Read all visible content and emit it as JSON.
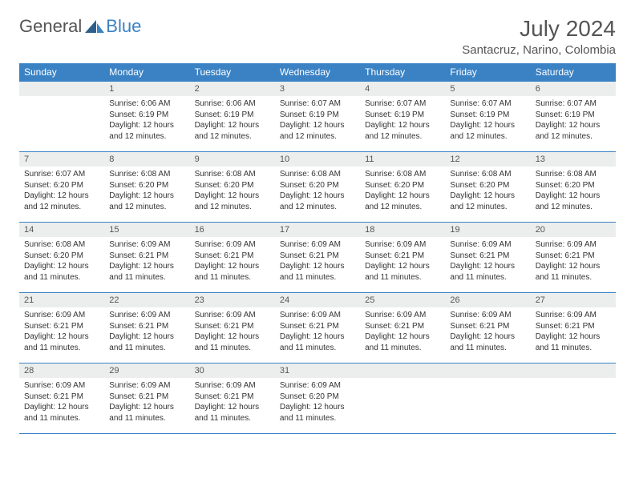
{
  "brand": {
    "part1": "General",
    "part2": "Blue"
  },
  "title": "July 2024",
  "location": "Santacruz, Narino, Colombia",
  "colors": {
    "header_bg": "#3b82c4",
    "header_text": "#ffffff",
    "daynum_bg": "#eceeee",
    "border": "#3b82c4",
    "text": "#333333",
    "brand_gray": "#555555",
    "brand_blue": "#3b82c4",
    "page_bg": "#ffffff"
  },
  "typography": {
    "title_fontsize": 28,
    "location_fontsize": 15,
    "weekday_fontsize": 12,
    "daynum_fontsize": 11,
    "body_fontsize": 10
  },
  "weekdays": [
    "Sunday",
    "Monday",
    "Tuesday",
    "Wednesday",
    "Thursday",
    "Friday",
    "Saturday"
  ],
  "weeks": [
    [
      null,
      {
        "n": "1",
        "sr": "Sunrise: 6:06 AM",
        "ss": "Sunset: 6:19 PM",
        "d1": "Daylight: 12 hours",
        "d2": "and 12 minutes."
      },
      {
        "n": "2",
        "sr": "Sunrise: 6:06 AM",
        "ss": "Sunset: 6:19 PM",
        "d1": "Daylight: 12 hours",
        "d2": "and 12 minutes."
      },
      {
        "n": "3",
        "sr": "Sunrise: 6:07 AM",
        "ss": "Sunset: 6:19 PM",
        "d1": "Daylight: 12 hours",
        "d2": "and 12 minutes."
      },
      {
        "n": "4",
        "sr": "Sunrise: 6:07 AM",
        "ss": "Sunset: 6:19 PM",
        "d1": "Daylight: 12 hours",
        "d2": "and 12 minutes."
      },
      {
        "n": "5",
        "sr": "Sunrise: 6:07 AM",
        "ss": "Sunset: 6:19 PM",
        "d1": "Daylight: 12 hours",
        "d2": "and 12 minutes."
      },
      {
        "n": "6",
        "sr": "Sunrise: 6:07 AM",
        "ss": "Sunset: 6:19 PM",
        "d1": "Daylight: 12 hours",
        "d2": "and 12 minutes."
      }
    ],
    [
      {
        "n": "7",
        "sr": "Sunrise: 6:07 AM",
        "ss": "Sunset: 6:20 PM",
        "d1": "Daylight: 12 hours",
        "d2": "and 12 minutes."
      },
      {
        "n": "8",
        "sr": "Sunrise: 6:08 AM",
        "ss": "Sunset: 6:20 PM",
        "d1": "Daylight: 12 hours",
        "d2": "and 12 minutes."
      },
      {
        "n": "9",
        "sr": "Sunrise: 6:08 AM",
        "ss": "Sunset: 6:20 PM",
        "d1": "Daylight: 12 hours",
        "d2": "and 12 minutes."
      },
      {
        "n": "10",
        "sr": "Sunrise: 6:08 AM",
        "ss": "Sunset: 6:20 PM",
        "d1": "Daylight: 12 hours",
        "d2": "and 12 minutes."
      },
      {
        "n": "11",
        "sr": "Sunrise: 6:08 AM",
        "ss": "Sunset: 6:20 PM",
        "d1": "Daylight: 12 hours",
        "d2": "and 12 minutes."
      },
      {
        "n": "12",
        "sr": "Sunrise: 6:08 AM",
        "ss": "Sunset: 6:20 PM",
        "d1": "Daylight: 12 hours",
        "d2": "and 12 minutes."
      },
      {
        "n": "13",
        "sr": "Sunrise: 6:08 AM",
        "ss": "Sunset: 6:20 PM",
        "d1": "Daylight: 12 hours",
        "d2": "and 12 minutes."
      }
    ],
    [
      {
        "n": "14",
        "sr": "Sunrise: 6:08 AM",
        "ss": "Sunset: 6:20 PM",
        "d1": "Daylight: 12 hours",
        "d2": "and 11 minutes."
      },
      {
        "n": "15",
        "sr": "Sunrise: 6:09 AM",
        "ss": "Sunset: 6:21 PM",
        "d1": "Daylight: 12 hours",
        "d2": "and 11 minutes."
      },
      {
        "n": "16",
        "sr": "Sunrise: 6:09 AM",
        "ss": "Sunset: 6:21 PM",
        "d1": "Daylight: 12 hours",
        "d2": "and 11 minutes."
      },
      {
        "n": "17",
        "sr": "Sunrise: 6:09 AM",
        "ss": "Sunset: 6:21 PM",
        "d1": "Daylight: 12 hours",
        "d2": "and 11 minutes."
      },
      {
        "n": "18",
        "sr": "Sunrise: 6:09 AM",
        "ss": "Sunset: 6:21 PM",
        "d1": "Daylight: 12 hours",
        "d2": "and 11 minutes."
      },
      {
        "n": "19",
        "sr": "Sunrise: 6:09 AM",
        "ss": "Sunset: 6:21 PM",
        "d1": "Daylight: 12 hours",
        "d2": "and 11 minutes."
      },
      {
        "n": "20",
        "sr": "Sunrise: 6:09 AM",
        "ss": "Sunset: 6:21 PM",
        "d1": "Daylight: 12 hours",
        "d2": "and 11 minutes."
      }
    ],
    [
      {
        "n": "21",
        "sr": "Sunrise: 6:09 AM",
        "ss": "Sunset: 6:21 PM",
        "d1": "Daylight: 12 hours",
        "d2": "and 11 minutes."
      },
      {
        "n": "22",
        "sr": "Sunrise: 6:09 AM",
        "ss": "Sunset: 6:21 PM",
        "d1": "Daylight: 12 hours",
        "d2": "and 11 minutes."
      },
      {
        "n": "23",
        "sr": "Sunrise: 6:09 AM",
        "ss": "Sunset: 6:21 PM",
        "d1": "Daylight: 12 hours",
        "d2": "and 11 minutes."
      },
      {
        "n": "24",
        "sr": "Sunrise: 6:09 AM",
        "ss": "Sunset: 6:21 PM",
        "d1": "Daylight: 12 hours",
        "d2": "and 11 minutes."
      },
      {
        "n": "25",
        "sr": "Sunrise: 6:09 AM",
        "ss": "Sunset: 6:21 PM",
        "d1": "Daylight: 12 hours",
        "d2": "and 11 minutes."
      },
      {
        "n": "26",
        "sr": "Sunrise: 6:09 AM",
        "ss": "Sunset: 6:21 PM",
        "d1": "Daylight: 12 hours",
        "d2": "and 11 minutes."
      },
      {
        "n": "27",
        "sr": "Sunrise: 6:09 AM",
        "ss": "Sunset: 6:21 PM",
        "d1": "Daylight: 12 hours",
        "d2": "and 11 minutes."
      }
    ],
    [
      {
        "n": "28",
        "sr": "Sunrise: 6:09 AM",
        "ss": "Sunset: 6:21 PM",
        "d1": "Daylight: 12 hours",
        "d2": "and 11 minutes."
      },
      {
        "n": "29",
        "sr": "Sunrise: 6:09 AM",
        "ss": "Sunset: 6:21 PM",
        "d1": "Daylight: 12 hours",
        "d2": "and 11 minutes."
      },
      {
        "n": "30",
        "sr": "Sunrise: 6:09 AM",
        "ss": "Sunset: 6:21 PM",
        "d1": "Daylight: 12 hours",
        "d2": "and 11 minutes."
      },
      {
        "n": "31",
        "sr": "Sunrise: 6:09 AM",
        "ss": "Sunset: 6:20 PM",
        "d1": "Daylight: 12 hours",
        "d2": "and 11 minutes."
      },
      null,
      null,
      null
    ]
  ]
}
